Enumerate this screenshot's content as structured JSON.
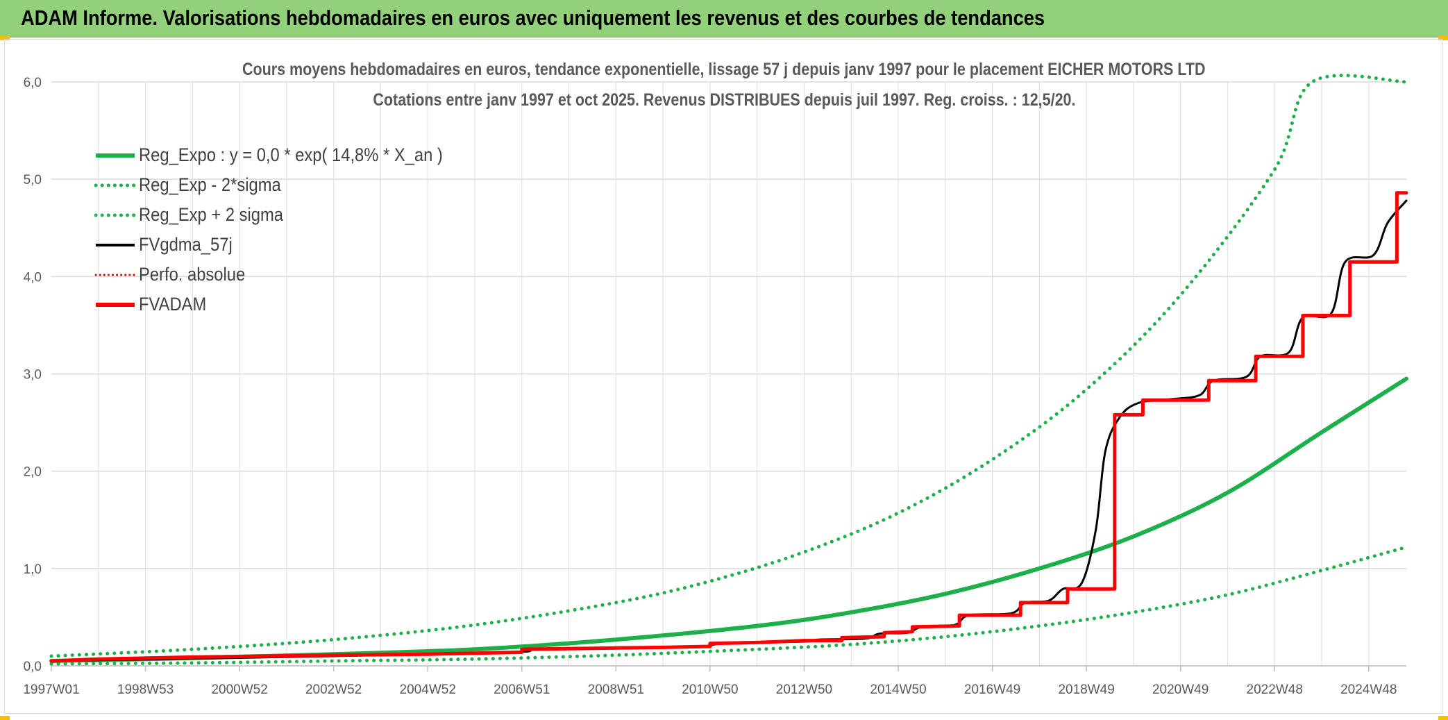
{
  "header": {
    "title": "ADAM Informe. Valorisations hebdomadaires en euros avec uniquement les revenus et des courbes de tendances"
  },
  "chart_data": {
    "type": "line",
    "title_line1": "Cours moyens hebdomadaires en euros, tendance exponentielle, lissage 57 j depuis janv 1997 pour le placement EICHER MOTORS LTD",
    "title_line2": "Cotations entre janv 1997 et oct 2025. Revenus DISTRIBUES depuis juil 1997. Reg. croiss. : 12,5/20.",
    "x_range": [
      1997.0,
      2025.8
    ],
    "ylim": [
      0,
      6
    ],
    "y_ticks": [
      "0,0",
      "1,0",
      "2,0",
      "3,0",
      "4,0",
      "5,0",
      "6,0"
    ],
    "x_tick_labels": [
      "1997W01",
      "1998W53",
      "2000W52",
      "2002W52",
      "2004W52",
      "2006W51",
      "2008W51",
      "2010W50",
      "2012W50",
      "2014W50",
      "2016W49",
      "2018W49",
      "2020W49",
      "2022W48",
      "2024W48"
    ],
    "x_tick_years": [
      1997.0,
      1999.0,
      2001.0,
      2003.0,
      2005.0,
      2007.0,
      2009.0,
      2011.0,
      2013.0,
      2015.0,
      2017.0,
      2019.0,
      2021.0,
      2023.0,
      2025.0
    ],
    "grid": true,
    "legend_position": "top-left",
    "series": [
      {
        "name": "Reg_Expo : y = 0,0 * exp( 14,8% *  X_an )",
        "style": "solid",
        "color": "#1db04a",
        "points": [
          [
            1997.0,
            0.05
          ],
          [
            2000.0,
            0.08
          ],
          [
            2003.0,
            0.12
          ],
          [
            2006.0,
            0.17
          ],
          [
            2009.0,
            0.27
          ],
          [
            2012.0,
            0.41
          ],
          [
            2014.0,
            0.55
          ],
          [
            2016.0,
            0.74
          ],
          [
            2018.0,
            1.0
          ],
          [
            2020.0,
            1.33
          ],
          [
            2022.0,
            1.78
          ],
          [
            2024.0,
            2.4
          ],
          [
            2025.8,
            2.95
          ]
        ]
      },
      {
        "name": "Reg_Exp - 2*sigma",
        "style": "dotted",
        "color": "#1db04a",
        "points": [
          [
            1997.0,
            0.02
          ],
          [
            2000.0,
            0.03
          ],
          [
            2003.0,
            0.05
          ],
          [
            2006.0,
            0.07
          ],
          [
            2009.0,
            0.11
          ],
          [
            2012.0,
            0.17
          ],
          [
            2014.0,
            0.22
          ],
          [
            2016.0,
            0.3
          ],
          [
            2018.0,
            0.41
          ],
          [
            2020.0,
            0.55
          ],
          [
            2022.0,
            0.73
          ],
          [
            2024.0,
            0.98
          ],
          [
            2025.8,
            1.22
          ]
        ]
      },
      {
        "name": "Reg_Exp + 2 sigma",
        "style": "dotted",
        "color": "#1db04a",
        "points": [
          [
            1997.0,
            0.1
          ],
          [
            2000.0,
            0.17
          ],
          [
            2003.0,
            0.27
          ],
          [
            2006.0,
            0.42
          ],
          [
            2009.0,
            0.65
          ],
          [
            2011.0,
            0.87
          ],
          [
            2013.0,
            1.17
          ],
          [
            2015.0,
            1.57
          ],
          [
            2017.0,
            2.12
          ],
          [
            2019.0,
            2.84
          ],
          [
            2021.0,
            3.81
          ],
          [
            2023.0,
            5.1
          ],
          [
            2023.8,
            6.0
          ],
          [
            2025.8,
            6.0
          ]
        ]
      },
      {
        "name": "FVgdma_57j",
        "style": "solid",
        "color": "#000000",
        "points": [
          [
            1997.0,
            0.05
          ],
          [
            2003.0,
            0.1
          ],
          [
            2006.8,
            0.14
          ],
          [
            2007.3,
            0.17
          ],
          [
            2009.0,
            0.19
          ],
          [
            2010.8,
            0.2
          ],
          [
            2011.3,
            0.23
          ],
          [
            2013.0,
            0.25
          ],
          [
            2013.3,
            0.27
          ],
          [
            2014.3,
            0.28
          ],
          [
            2014.6,
            0.33
          ],
          [
            2015.2,
            0.34
          ],
          [
            2015.5,
            0.4
          ],
          [
            2016.2,
            0.42
          ],
          [
            2016.5,
            0.52
          ],
          [
            2017.4,
            0.54
          ],
          [
            2017.7,
            0.65
          ],
          [
            2018.2,
            0.67
          ],
          [
            2018.5,
            0.79
          ],
          [
            2018.9,
            0.85
          ],
          [
            2019.2,
            1.4
          ],
          [
            2019.4,
            2.2
          ],
          [
            2019.7,
            2.55
          ],
          [
            2020.1,
            2.7
          ],
          [
            2020.8,
            2.74
          ],
          [
            2021.4,
            2.78
          ],
          [
            2021.7,
            2.93
          ],
          [
            2022.4,
            2.97
          ],
          [
            2022.7,
            3.18
          ],
          [
            2023.3,
            3.22
          ],
          [
            2023.6,
            3.58
          ],
          [
            2024.2,
            3.62
          ],
          [
            2024.5,
            4.15
          ],
          [
            2025.1,
            4.22
          ],
          [
            2025.4,
            4.55
          ],
          [
            2025.8,
            4.78
          ]
        ]
      },
      {
        "name": "Perfo. absolue",
        "style": "dotted",
        "color": "#e00000",
        "points": []
      },
      {
        "name": "FVADAM",
        "style": "solid",
        "color": "#ff0000",
        "points": [
          [
            1997.0,
            0.05
          ],
          [
            1998.0,
            0.07
          ],
          [
            2000.0,
            0.09
          ],
          [
            2003.0,
            0.11
          ],
          [
            2005.0,
            0.12
          ],
          [
            2007.0,
            0.14
          ],
          [
            2007.0,
            0.17
          ],
          [
            2008.5,
            0.18
          ],
          [
            2010.0,
            0.19
          ],
          [
            2011.0,
            0.2
          ],
          [
            2011.0,
            0.23
          ],
          [
            2012.0,
            0.24
          ],
          [
            2013.0,
            0.26
          ],
          [
            2013.8,
            0.26
          ],
          [
            2013.8,
            0.29
          ],
          [
            2014.7,
            0.3
          ],
          [
            2014.7,
            0.34
          ],
          [
            2015.3,
            0.35
          ],
          [
            2015.3,
            0.4
          ],
          [
            2016.3,
            0.41
          ],
          [
            2016.3,
            0.52
          ],
          [
            2017.6,
            0.52
          ],
          [
            2017.6,
            0.65
          ],
          [
            2018.6,
            0.65
          ],
          [
            2018.6,
            0.79
          ],
          [
            2019.6,
            0.79
          ],
          [
            2019.6,
            2.58
          ],
          [
            2020.2,
            2.58
          ],
          [
            2020.2,
            2.73
          ],
          [
            2021.6,
            2.73
          ],
          [
            2021.6,
            2.93
          ],
          [
            2022.6,
            2.93
          ],
          [
            2022.6,
            3.18
          ],
          [
            2023.6,
            3.18
          ],
          [
            2023.6,
            3.6
          ],
          [
            2024.6,
            3.6
          ],
          [
            2024.6,
            4.15
          ],
          [
            2025.6,
            4.15
          ],
          [
            2025.6,
            4.86
          ],
          [
            2025.8,
            4.86
          ]
        ]
      }
    ]
  }
}
